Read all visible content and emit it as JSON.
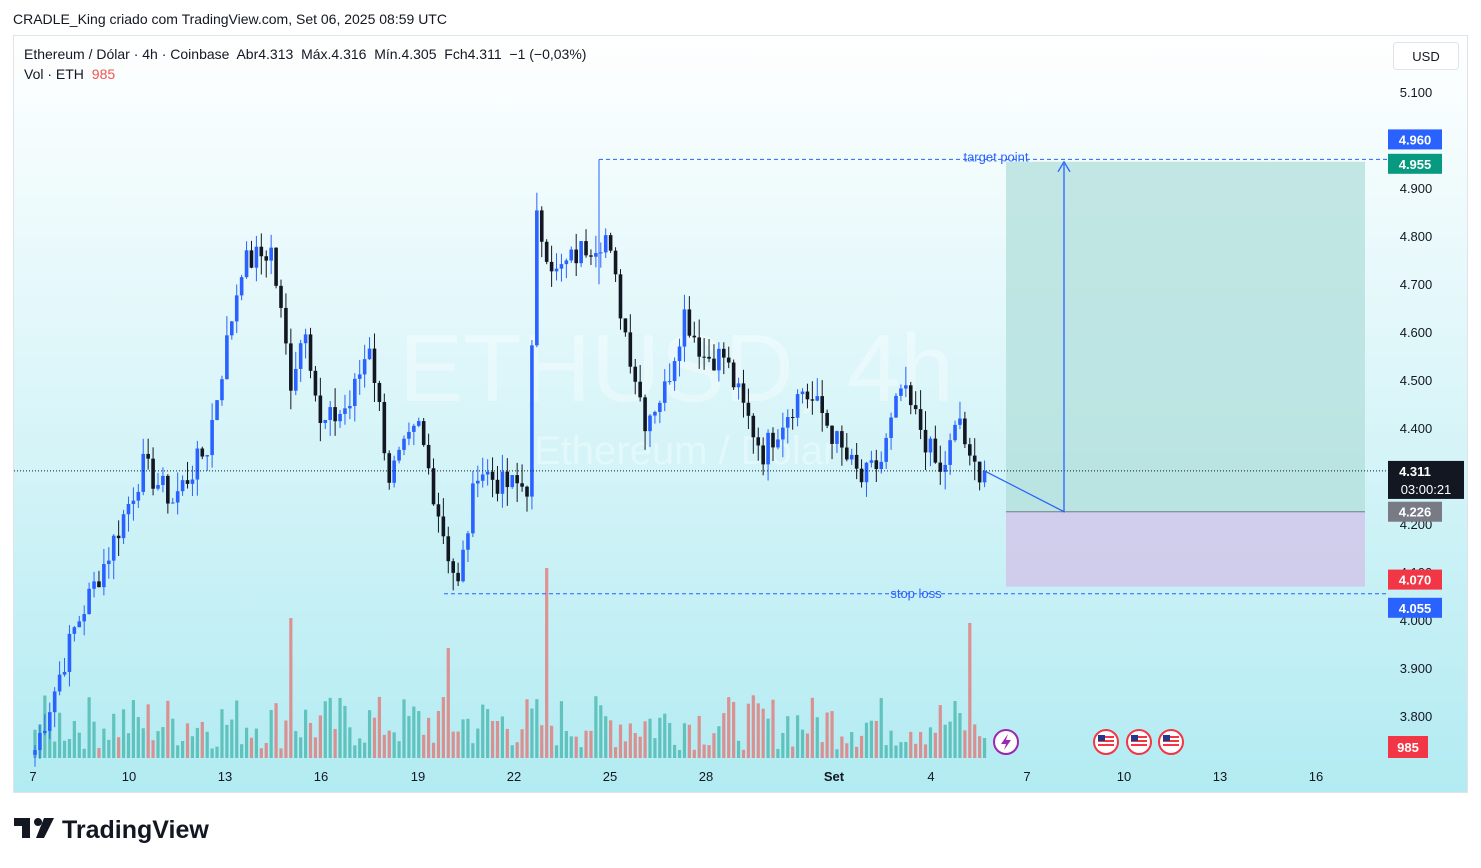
{
  "header": {
    "title": "CRADLE_King criado com TradingView.com, Set 06, 2025 08:59 UTC"
  },
  "legend": {
    "symbol": "Ethereum / Dólar · 4h · Coinbase",
    "open": "Abr4.313",
    "high": "Máx.4.316",
    "low": "Mín.4.305",
    "close": "Fch4.311",
    "change": "−1 (−0,03%)",
    "vol_label": "Vol · ETH",
    "vol_value": "985"
  },
  "currency": "USD",
  "watermark": {
    "main": "ETHUSD, 4h",
    "sub": "Ethereum / Dólar"
  },
  "annotations": {
    "target": "target point",
    "stop": "stop loss"
  },
  "price_labels": {
    "p4960": "4.960",
    "p4955": "4.955",
    "current_price": "4.311",
    "countdown": "03:00:21",
    "p4226": "4.226",
    "p4070": "4.070",
    "p4055": "4.055",
    "volume": "985"
  },
  "colors": {
    "up": "#2962ff",
    "down": "#131722",
    "vol_up": "#26a69a",
    "vol_down": "#ef5350",
    "profit": "#b2dfdb",
    "loss": "#d1c4e9",
    "bg_top": "#ffffff",
    "bg_bottom": "#b2ebf2"
  },
  "footer": {
    "brand": "TradingView",
    "icon": "tradingview-logo-icon"
  },
  "event_icons": [
    "lightning-icon",
    "us-flag-icon",
    "us-flag-icon",
    "us-flag-icon"
  ],
  "chart_data": {
    "type": "candlestick",
    "ylim": [
      3.7,
      5.2
    ],
    "y_ticks": [
      "3.800",
      "3.900",
      "4.000",
      "4.100",
      "4.200",
      "4.300",
      "4.400",
      "4.500",
      "4.600",
      "4.700",
      "4.800",
      "4.900",
      "5.100"
    ],
    "x_ticks": [
      "7",
      "10",
      "13",
      "16",
      "19",
      "22",
      "25",
      "28",
      "Set",
      "4",
      "7",
      "10",
      "13",
      "16"
    ],
    "keypoints": [
      {
        "i": 0,
        "p": 3.73
      },
      {
        "i": 8,
        "p": 3.98
      },
      {
        "i": 15,
        "p": 4.14
      },
      {
        "i": 22,
        "p": 4.32
      },
      {
        "i": 28,
        "p": 4.25
      },
      {
        "i": 35,
        "p": 4.36
      },
      {
        "i": 42,
        "p": 4.74
      },
      {
        "i": 48,
        "p": 4.77
      },
      {
        "i": 52,
        "p": 4.5
      },
      {
        "i": 55,
        "p": 4.62
      },
      {
        "i": 58,
        "p": 4.4
      },
      {
        "i": 64,
        "p": 4.45
      },
      {
        "i": 68,
        "p": 4.58
      },
      {
        "i": 72,
        "p": 4.3
      },
      {
        "i": 78,
        "p": 4.4
      },
      {
        "i": 84,
        "p": 4.14
      },
      {
        "i": 86,
        "p": 4.07
      },
      {
        "i": 90,
        "p": 4.32
      },
      {
        "i": 95,
        "p": 4.28
      },
      {
        "i": 100,
        "p": 4.28
      },
      {
        "i": 102,
        "p": 4.83
      },
      {
        "i": 106,
        "p": 4.72
      },
      {
        "i": 112,
        "p": 4.78
      },
      {
        "i": 116,
        "p": 4.8
      },
      {
        "i": 120,
        "p": 4.6
      },
      {
        "i": 124,
        "p": 4.42
      },
      {
        "i": 128,
        "p": 4.48
      },
      {
        "i": 132,
        "p": 4.64
      },
      {
        "i": 136,
        "p": 4.55
      },
      {
        "i": 140,
        "p": 4.55
      },
      {
        "i": 144,
        "p": 4.44
      },
      {
        "i": 148,
        "p": 4.35
      },
      {
        "i": 152,
        "p": 4.42
      },
      {
        "i": 156,
        "p": 4.48
      },
      {
        "i": 160,
        "p": 4.43
      },
      {
        "i": 164,
        "p": 4.35
      },
      {
        "i": 168,
        "p": 4.29
      },
      {
        "i": 172,
        "p": 4.33
      },
      {
        "i": 176,
        "p": 4.48
      },
      {
        "i": 180,
        "p": 4.4
      },
      {
        "i": 184,
        "p": 4.3
      },
      {
        "i": 188,
        "p": 4.42
      },
      {
        "i": 190,
        "p": 4.32
      },
      {
        "i": 193,
        "p": 4.311
      }
    ],
    "position": {
      "entry": 4.226,
      "target": 4.955,
      "stop": 4.07,
      "target_line": 4.96,
      "stop_line": 4.055
    },
    "current_price": 4.311,
    "last_volume": 985
  }
}
